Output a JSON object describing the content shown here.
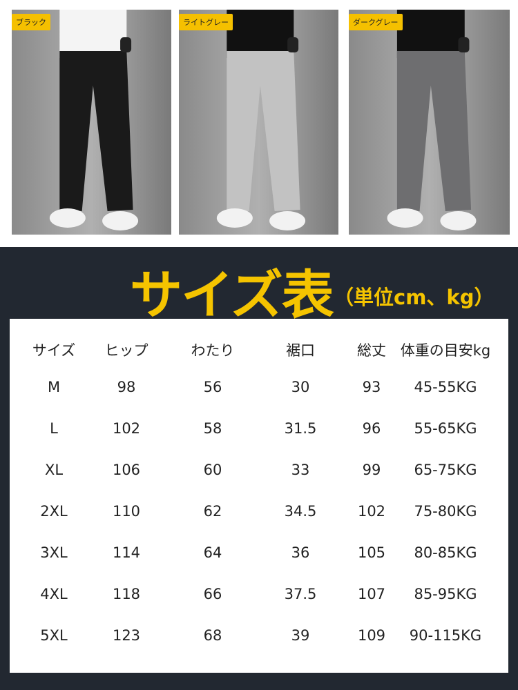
{
  "colors": {
    "background_dark": "#222831",
    "accent": "#f5c400",
    "tag": "#f5c000"
  },
  "photos": [
    {
      "label": "ブラック",
      "pants_color": "#1a1a1a",
      "shirt_color": "#f4f4f4"
    },
    {
      "label": "ライトグレー",
      "pants_color": "#c2c2c2",
      "shirt_color": "#111111"
    },
    {
      "label": "ダークグレー",
      "pants_color": "#6e6e70",
      "shirt_color": "#111111"
    }
  ],
  "title": "サイズ表",
  "unit": "（単位cm、kg）",
  "table": {
    "headers": [
      "サイズ",
      "ヒップ",
      "わたり",
      "裾口",
      "総丈",
      "体重の目安kg"
    ],
    "rows": [
      [
        "M",
        "98",
        "56",
        "30",
        "93",
        "45-55KG"
      ],
      [
        "L",
        "102",
        "58",
        "31.5",
        "96",
        "55-65KG"
      ],
      [
        "XL",
        "106",
        "60",
        "33",
        "99",
        "65-75KG"
      ],
      [
        "2XL",
        "110",
        "62",
        "34.5",
        "102",
        "75-80KG"
      ],
      [
        "3XL",
        "114",
        "64",
        "36",
        "105",
        "80-85KG"
      ],
      [
        "4XL",
        "118",
        "66",
        "37.5",
        "107",
        "85-95KG"
      ],
      [
        "5XL",
        "123",
        "68",
        "39",
        "109",
        "90-115KG"
      ]
    ]
  }
}
